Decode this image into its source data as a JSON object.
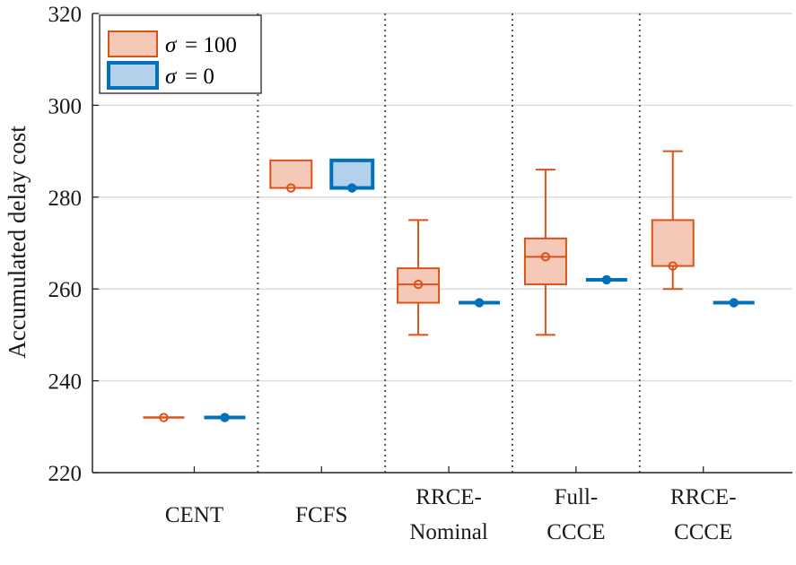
{
  "chart_data": {
    "type": "box",
    "title": "",
    "xlabel": "",
    "ylabel": "Accumulated delay cost",
    "ylim": [
      220,
      320
    ],
    "yticks": [
      220,
      240,
      260,
      280,
      300,
      320
    ],
    "grid": "horizontal",
    "legend_position": "top-left",
    "categories": [
      {
        "line1": "CENT",
        "line2": ""
      },
      {
        "line1": "FCFS",
        "line2": ""
      },
      {
        "line1": "RRCE-",
        "line2": "Nominal"
      },
      {
        "line1": "Full-",
        "line2": "CCCE"
      },
      {
        "line1": "RRCE-",
        "line2": "CCCE"
      }
    ],
    "series": [
      {
        "name": "σ = 100",
        "legend_sigma": "σ",
        "legend_value": "= 100",
        "color": "#d95319",
        "fill": "#f5c9b8",
        "boxes": [
          {
            "whisker_low": 232,
            "q1": 232,
            "median": 232,
            "q3": 232,
            "whisker_high": 232,
            "mean": 232
          },
          {
            "whisker_low": 282,
            "q1": 282,
            "median": 282,
            "q3": 288,
            "whisker_high": 288,
            "mean": 282
          },
          {
            "whisker_low": 250,
            "q1": 257,
            "median": 261,
            "q3": 264.5,
            "whisker_high": 275,
            "mean": 261
          },
          {
            "whisker_low": 250,
            "q1": 261,
            "median": 267,
            "q3": 271,
            "whisker_high": 286,
            "mean": 267
          },
          {
            "whisker_low": 260,
            "q1": 265,
            "median": 265,
            "q3": 275,
            "whisker_high": 290,
            "mean": 265
          }
        ]
      },
      {
        "name": "σ = 0",
        "legend_sigma": "σ",
        "legend_value": "= 0",
        "color": "#0072bd",
        "fill": "#b3d1ea",
        "boxes": [
          {
            "whisker_low": 232,
            "q1": 232,
            "median": 232,
            "q3": 232,
            "whisker_high": 232,
            "mean": 232
          },
          {
            "whisker_low": 282,
            "q1": 282,
            "median": 282,
            "q3": 288,
            "whisker_high": 288,
            "mean": 282
          },
          {
            "whisker_low": 257,
            "q1": 257,
            "median": 257,
            "q3": 257,
            "whisker_high": 257,
            "mean": 257
          },
          {
            "whisker_low": 262,
            "q1": 262,
            "median": 262,
            "q3": 262,
            "whisker_high": 262,
            "mean": 262
          },
          {
            "whisker_low": 257,
            "q1": 257,
            "median": 257,
            "q3": 257,
            "whisker_high": 257,
            "mean": 257
          }
        ]
      }
    ]
  }
}
